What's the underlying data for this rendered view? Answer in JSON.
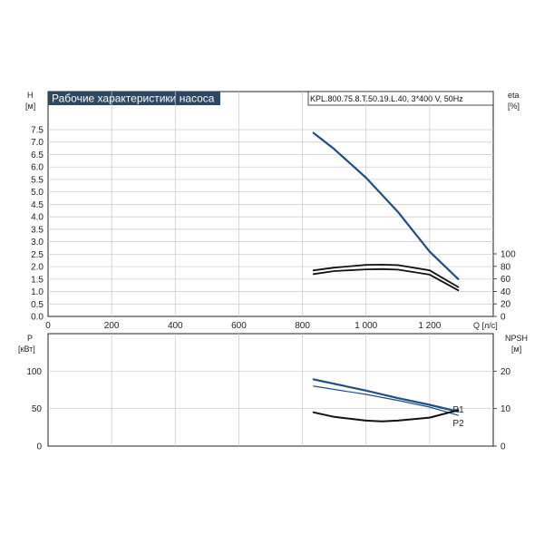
{
  "title": "Рабочие характеристики насоса",
  "model": "KPL.800.75.8.T.50.19.L.40, 3*400 V, 50Hz",
  "colors": {
    "title_bg": "#2c4862",
    "blue": "#1f4e85",
    "black": "#111111"
  },
  "chart_data": [
    {
      "type": "line",
      "name": "head-eta-panel",
      "xlabel": "Q [л/с]",
      "ylabel_left": "H",
      "ylabel_left_unit": "[м]",
      "ylabel_right": "eta",
      "ylabel_right_unit": "[%]",
      "xlim": [
        0,
        1400
      ],
      "x_ticks": [
        0,
        200,
        400,
        600,
        800,
        1000,
        1200
      ],
      "x_tick_labels": [
        "0",
        "200",
        "400",
        "600",
        "800",
        "1 000",
        "1 200"
      ],
      "ylim_left": [
        0,
        7.5
      ],
      "y_left_ticks": [
        "0.0",
        "0.5",
        "1.0",
        "1.5",
        "2.0",
        "2.5",
        "3.0",
        "3.5",
        "4.0",
        "4.5",
        "5.0",
        "5.5",
        "6.0",
        "6.5",
        "7.0",
        "7.5"
      ],
      "y_right_ticks": [
        "0",
        "20",
        "40",
        "60",
        "80",
        "100"
      ],
      "grid": true,
      "series": [
        {
          "axis": "left",
          "color": "#1f4e85",
          "width": 2.2,
          "x": [
            835,
            900,
            1000,
            1100,
            1200,
            1290
          ],
          "y": [
            7.37,
            6.72,
            5.57,
            4.2,
            2.6,
            1.5
          ]
        },
        {
          "axis": "left",
          "color": "#111111",
          "width": 1.8,
          "x": [
            835,
            900,
            1000,
            1050,
            1100,
            1200,
            1290
          ],
          "y": [
            1.85,
            1.96,
            2.07,
            2.08,
            2.06,
            1.85,
            1.18
          ]
        },
        {
          "axis": "left",
          "color": "#111111",
          "width": 1.8,
          "x": [
            835,
            900,
            1000,
            1050,
            1100,
            1200,
            1290
          ],
          "y": [
            1.7,
            1.82,
            1.89,
            1.9,
            1.88,
            1.68,
            1.05
          ]
        }
      ]
    },
    {
      "type": "line",
      "name": "power-npsh-panel",
      "ylabel_left": "P",
      "ylabel_left_unit": "[кВт]",
      "ylabel_right": "NPSH",
      "ylabel_right_unit": "[м]",
      "xlim": [
        0,
        1400
      ],
      "ylim_left": [
        0,
        150
      ],
      "y_left_ticks": [
        "0",
        "50",
        "100"
      ],
      "ylim_right": [
        0,
        30
      ],
      "y_right_ticks": [
        "0",
        "10",
        "20"
      ],
      "grid": true,
      "series": [
        {
          "name": "P1",
          "color": "#1f4e85",
          "width": 2.2,
          "x": [
            835,
            1000,
            1100,
            1200,
            1290
          ],
          "y": [
            89,
            74,
            64,
            55,
            46
          ]
        },
        {
          "name": "P2",
          "color": "#1f4e85",
          "width": 1.2,
          "x": [
            835,
            1000,
            1100,
            1200,
            1290
          ],
          "y": [
            80,
            69,
            61,
            52,
            41
          ]
        },
        {
          "color": "#111111",
          "width": 2,
          "x": [
            835,
            900,
            1000,
            1050,
            1100,
            1200,
            1290
          ],
          "y": [
            45,
            39,
            34,
            33,
            34,
            38,
            48
          ]
        }
      ]
    }
  ]
}
